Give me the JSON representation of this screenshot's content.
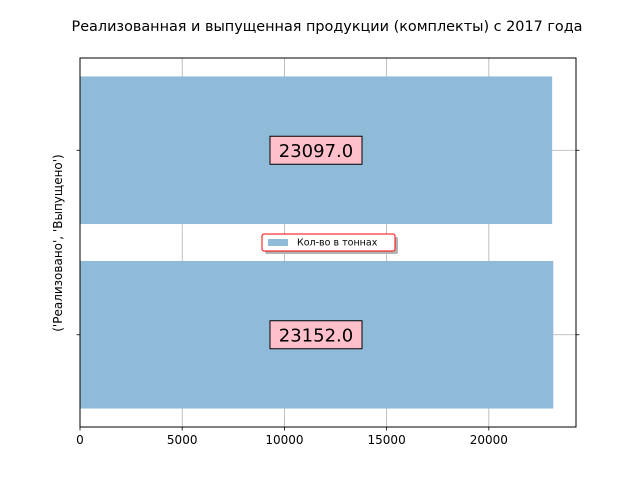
{
  "chart_data": {
    "type": "bar",
    "orientation": "horizontal",
    "title": "Реализованная и выпущенная продукции (комплекты) с 2017 года",
    "ylabel": "('Реализовано', 'Выпущено')",
    "xlabel": "",
    "categories": [
      "",
      ""
    ],
    "values": [
      23152.0,
      23097.0
    ],
    "data_labels": [
      "23152.0",
      "23097.0"
    ],
    "xlim": [
      0,
      24264
    ],
    "xticks": [
      0,
      5000,
      10000,
      15000,
      20000
    ],
    "xtick_labels": [
      "0",
      "5000",
      "10000",
      "15000",
      "20000"
    ],
    "grid": true,
    "legend": {
      "entries": [
        "Кол-во в тоннах"
      ],
      "placement": "center"
    },
    "colors": {
      "bar": "#8fbbd9",
      "label_box_fill": "#ffc0cb",
      "legend_edge": "#ff0000",
      "grid": "#b0b0b0",
      "axis": "#000000"
    }
  }
}
